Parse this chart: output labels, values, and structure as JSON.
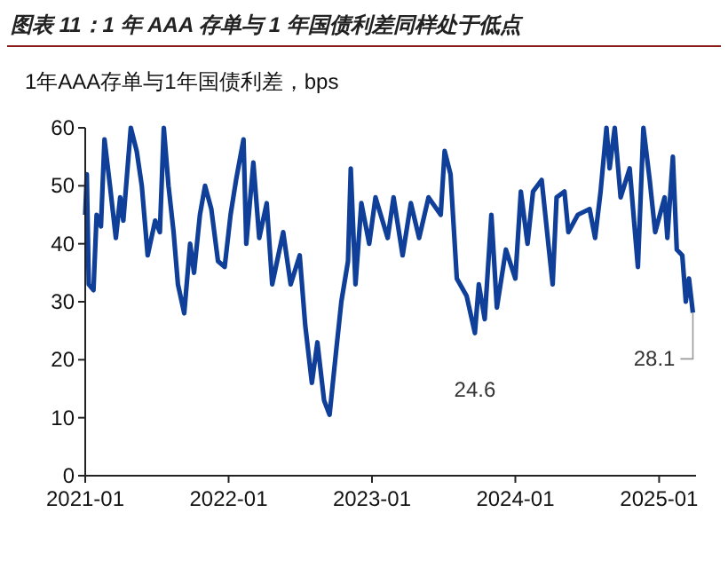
{
  "chart_data": {
    "type": "line",
    "title": "图表 11：1 年 AAA 存单与 1 年国债利差同样处于低点",
    "ylabel": "1年AAA存单与1年国债利差，bps",
    "x": [
      "2021-01-01",
      "2021-01-05",
      "2021-01-10",
      "2021-01-22",
      "2021-01-30",
      "2021-02-10",
      "2021-02-19",
      "2021-03-05",
      "2021-03-20",
      "2021-03-31",
      "2021-04-08",
      "2021-04-27",
      "2021-05-12",
      "2021-05-25",
      "2021-06-09",
      "2021-06-28",
      "2021-07-10",
      "2021-07-20",
      "2021-08-01",
      "2021-08-14",
      "2021-08-25",
      "2021-09-10",
      "2021-09-25",
      "2021-10-05",
      "2021-10-20",
      "2021-11-02",
      "2021-11-18",
      "2021-12-05",
      "2021-12-22",
      "2022-01-06",
      "2022-01-20",
      "2022-02-08",
      "2022-02-15",
      "2022-03-05",
      "2022-03-20",
      "2022-04-08",
      "2022-04-22",
      "2022-05-20",
      "2022-06-08",
      "2022-07-01",
      "2022-07-15",
      "2022-08-01",
      "2022-08-15",
      "2022-09-01",
      "2022-09-15",
      "2022-10-01",
      "2022-10-15",
      "2022-11-01",
      "2022-11-08",
      "2022-11-20",
      "2022-12-05",
      "2022-12-25",
      "2023-01-10",
      "2023-02-10",
      "2023-02-25",
      "2023-03-20",
      "2023-04-10",
      "2023-05-01",
      "2023-05-25",
      "2023-06-25",
      "2023-07-05",
      "2023-07-20",
      "2023-08-05",
      "2023-08-30",
      "2023-09-20",
      "2023-09-30",
      "2023-10-15",
      "2023-11-01",
      "2023-11-15",
      "2023-12-08",
      "2024-01-01",
      "2024-01-15",
      "2024-02-01",
      "2024-02-15",
      "2024-03-08",
      "2024-03-25",
      "2024-04-05",
      "2024-04-15",
      "2024-05-05",
      "2024-05-15",
      "2024-06-08",
      "2024-07-08",
      "2024-07-22",
      "2024-08-05",
      "2024-08-20",
      "2024-08-28",
      "2024-09-10",
      "2024-09-25",
      "2024-10-18",
      "2024-11-08",
      "2024-11-22",
      "2024-12-08",
      "2024-12-22",
      "2025-01-15",
      "2025-01-22",
      "2025-02-05",
      "2025-02-15",
      "2025-03-01",
      "2025-03-10",
      "2025-03-18",
      "2025-03-28"
    ],
    "series": [
      {
        "color": "#0f3f99",
        "values": [
          45,
          52,
          33,
          32,
          45,
          43,
          58,
          50,
          41,
          48,
          44,
          60,
          56,
          50,
          38,
          44,
          42,
          60,
          50,
          42,
          33,
          28,
          40,
          35,
          45,
          50,
          46,
          37,
          36,
          45,
          51,
          58,
          40,
          54,
          41,
          47,
          33,
          42,
          33,
          38,
          26,
          16,
          23,
          13,
          10.5,
          21,
          30,
          37,
          53,
          33,
          47,
          40,
          48,
          41,
          48,
          38,
          47,
          41,
          48,
          45,
          56,
          52,
          34,
          31,
          24.6,
          33,
          27,
          45,
          29,
          39,
          34,
          49,
          40,
          49,
          51,
          40,
          33,
          48,
          49,
          42,
          45,
          46,
          41,
          49,
          60,
          53,
          60,
          48,
          53,
          36,
          60,
          51,
          42,
          48,
          41,
          55,
          39,
          38,
          30,
          34,
          28.1
        ]
      }
    ],
    "xlim": [
      "2021-01-01",
      "2025-04-05"
    ],
    "xticks": [
      "2021-01",
      "2022-01",
      "2023-01",
      "2024-01",
      "2025-01"
    ],
    "ylim": [
      0,
      60
    ],
    "yticks": [
      0,
      10,
      20,
      30,
      40,
      50,
      60
    ],
    "line_style": "solid",
    "marker": "none",
    "annotations": [
      {
        "text": "24.6",
        "x": "2023-09-20",
        "y": 24.6
      },
      {
        "text": "28.1",
        "x": "2025-03-28",
        "y": 28.1
      }
    ]
  }
}
